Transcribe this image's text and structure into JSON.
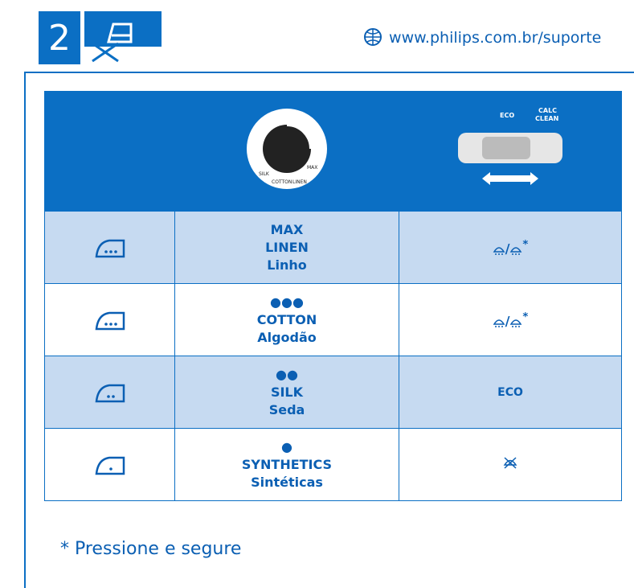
{
  "header": {
    "page_number": "2",
    "url": "www.philips.com.br/suporte"
  },
  "table": {
    "header": {
      "dial_labels": [
        "MAX",
        "SILK",
        "COTTON",
        "LINEN"
      ],
      "steam_labels": [
        "ECO",
        "CALC",
        "CLEAN"
      ]
    },
    "rows": [
      {
        "temperature": [
          "MAX",
          "LINEN",
          "Linho"
        ],
        "steam": "/",
        "steam_note": "*"
      },
      {
        "temperature": [
          "●●●",
          "COTTON",
          "Algodão"
        ],
        "steam": "/",
        "steam_note": "*"
      },
      {
        "temperature": [
          "●●",
          "SILK",
          "Seda"
        ],
        "steam": "ECO"
      },
      {
        "temperature": [
          "●",
          "SYNTHETICS",
          "Sintéticas"
        ]
      }
    ]
  },
  "footnote": "* Pressione e segure"
}
